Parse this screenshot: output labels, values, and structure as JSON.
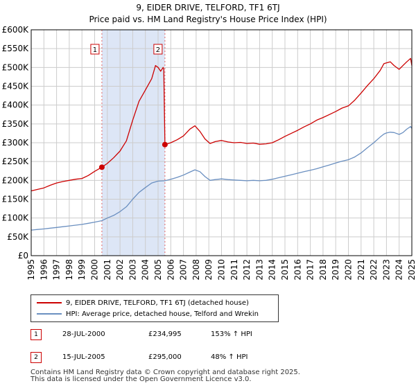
{
  "title": {
    "line1": "9, EIDER DRIVE, TELFORD, TF1 6TJ",
    "line2": "Price paid vs. HM Land Registry's House Price Index (HPI)"
  },
  "chart_data": {
    "type": "line",
    "title": "9, EIDER DRIVE, TELFORD, TF1 6TJ — Price paid vs. HM Land Registry's House Price Index (HPI)",
    "xlabel": "",
    "ylabel": "",
    "xlim": [
      1995,
      2025
    ],
    "ylim": [
      0,
      600000
    ],
    "y_ticks": [
      0,
      50000,
      100000,
      150000,
      200000,
      250000,
      300000,
      350000,
      400000,
      450000,
      500000,
      550000,
      600000
    ],
    "y_tick_labels": [
      "£0",
      "£50K",
      "£100K",
      "£150K",
      "£200K",
      "£250K",
      "£300K",
      "£350K",
      "£400K",
      "£450K",
      "£500K",
      "£550K",
      "£600K"
    ],
    "x_ticks": [
      1995,
      1996,
      1997,
      1998,
      1999,
      2000,
      2001,
      2002,
      2003,
      2004,
      2005,
      2006,
      2007,
      2008,
      2009,
      2010,
      2011,
      2012,
      2013,
      2014,
      2015,
      2016,
      2017,
      2018,
      2019,
      2020,
      2021,
      2022,
      2023,
      2024,
      2025
    ],
    "grid": true,
    "colors": {
      "property": "#cc0000",
      "hpi": "#6a8fc0",
      "shade": "#dde6f6",
      "grid": "#cccccc",
      "vline": "#e06666"
    },
    "shaded_range": [
      2000.57,
      2005.54
    ],
    "series": [
      {
        "name": "9, EIDER DRIVE, TELFORD, TF1 6TJ (detached house)",
        "color": "#cc0000",
        "x": [
          1995.0,
          1995.5,
          1996.0,
          1996.5,
          1997.0,
          1997.5,
          1998.0,
          1998.5,
          1999.0,
          1999.5,
          2000.0,
          2000.57,
          2001.0,
          2001.5,
          2002.0,
          2002.5,
          2003.0,
          2003.5,
          2004.0,
          2004.5,
          2004.8,
          2005.0,
          2005.2,
          2005.4,
          2005.45,
          2005.54,
          2006.0,
          2006.5,
          2007.0,
          2007.5,
          2007.9,
          2008.3,
          2008.7,
          2009.1,
          2009.5,
          2010.0,
          2010.5,
          2011.0,
          2011.5,
          2012.0,
          2012.5,
          2013.0,
          2013.5,
          2014.0,
          2014.5,
          2015.0,
          2015.5,
          2016.0,
          2016.5,
          2017.0,
          2017.5,
          2018.0,
          2018.5,
          2019.0,
          2019.5,
          2020.0,
          2020.5,
          2021.0,
          2021.5,
          2022.0,
          2022.5,
          2022.8,
          2023.0,
          2023.3,
          2023.6,
          2024.0,
          2024.3,
          2024.6,
          2024.9,
          2025.0
        ],
        "values": [
          172000,
          176000,
          180000,
          187000,
          193000,
          197000,
          200000,
          203000,
          205000,
          213000,
          224000,
          234995,
          245000,
          260000,
          278000,
          305000,
          360000,
          410000,
          440000,
          470000,
          505000,
          500000,
          490000,
          500000,
          495000,
          295000,
          300000,
          308000,
          318000,
          336000,
          345000,
          330000,
          310000,
          298000,
          303000,
          306000,
          302000,
          300000,
          301000,
          298000,
          299000,
          296000,
          297000,
          300000,
          308000,
          317000,
          325000,
          333000,
          342000,
          350000,
          360000,
          367000,
          375000,
          383000,
          392000,
          398000,
          413000,
          432000,
          452000,
          470000,
          492000,
          510000,
          512000,
          515000,
          505000,
          495000,
          505000,
          515000,
          524000,
          505000
        ]
      },
      {
        "name": "HPI: Average price, detached house, Telford and Wrekin",
        "color": "#6a8fc0",
        "x": [
          1995.0,
          1995.5,
          1996.0,
          1996.5,
          1997.0,
          1997.5,
          1998.0,
          1998.5,
          1999.0,
          1999.5,
          2000.0,
          2000.57,
          2001.0,
          2001.5,
          2002.0,
          2002.5,
          2003.0,
          2003.5,
          2004.0,
          2004.5,
          2005.0,
          2005.54,
          2006.0,
          2006.5,
          2007.0,
          2007.5,
          2007.9,
          2008.3,
          2008.7,
          2009.1,
          2009.5,
          2010.0,
          2010.5,
          2011.0,
          2011.5,
          2012.0,
          2012.5,
          2013.0,
          2013.5,
          2014.0,
          2014.5,
          2015.0,
          2015.5,
          2016.0,
          2016.5,
          2017.0,
          2017.5,
          2018.0,
          2018.5,
          2019.0,
          2019.5,
          2020.0,
          2020.5,
          2021.0,
          2021.5,
          2022.0,
          2022.5,
          2022.8,
          2023.0,
          2023.3,
          2023.6,
          2024.0,
          2024.3,
          2024.6,
          2024.9,
          2025.0
        ],
        "values": [
          68000,
          69500,
          71000,
          73000,
          75000,
          77000,
          79000,
          81000,
          83000,
          86000,
          89000,
          93000,
          100000,
          107000,
          117000,
          130000,
          150000,
          168000,
          181000,
          193000,
          198000,
          199000,
          203000,
          208000,
          214000,
          222000,
          228000,
          223000,
          210000,
          200000,
          202000,
          204000,
          202000,
          201000,
          200000,
          199000,
          200000,
          199000,
          200000,
          203000,
          207000,
          211000,
          215000,
          219000,
          223000,
          227000,
          231000,
          236000,
          241000,
          246000,
          251000,
          255000,
          262000,
          273000,
          287000,
          300000,
          315000,
          323000,
          326000,
          328000,
          327000,
          322000,
          327000,
          336000,
          343000,
          338000
        ]
      }
    ],
    "sale_markers": [
      {
        "label": "1",
        "x": 2000.57,
        "value": 234995
      },
      {
        "label": "2",
        "x": 2005.54,
        "value": 295000
      }
    ]
  },
  "legend": {
    "items": [
      {
        "label": "9, EIDER DRIVE, TELFORD, TF1 6TJ (detached house)",
        "color": "#cc0000"
      },
      {
        "label": "HPI: Average price, detached house, Telford and Wrekin",
        "color": "#6a8fc0"
      }
    ]
  },
  "sales": [
    {
      "badge": "1",
      "date": "28-JUL-2000",
      "price": "£234,995",
      "hpi": "153% ↑ HPI"
    },
    {
      "badge": "2",
      "date": "15-JUL-2005",
      "price": "£295,000",
      "hpi": "48% ↑ HPI"
    }
  ],
  "footer": {
    "line1": "Contains HM Land Registry data © Crown copyright and database right 2025.",
    "line2": "This data is licensed under the Open Government Licence v3.0."
  }
}
